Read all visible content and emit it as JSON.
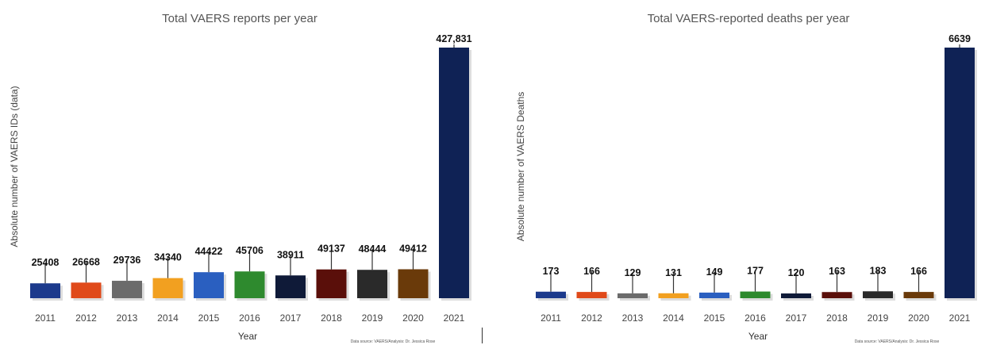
{
  "chart_data": [
    {
      "type": "bar",
      "title": "Total VAERS reports per year",
      "xlabel": "Year",
      "ylabel": "Absolute number of VAERS IDs (data)",
      "categories": [
        "2011",
        "2012",
        "2013",
        "2014",
        "2015",
        "2016",
        "2017",
        "2018",
        "2019",
        "2020",
        "2021"
      ],
      "values": [
        25408,
        26668,
        29736,
        34340,
        44422,
        45706,
        38911,
        49137,
        48444,
        49412,
        427831
      ],
      "value_labels": [
        "25408",
        "26668",
        "29736",
        "34340",
        "44422",
        "45706",
        "38911",
        "49137",
        "48444",
        "49412",
        "427,831"
      ],
      "ylim": [
        0,
        427831
      ],
      "grid": false,
      "source": "Data source: VAERS/Analysis: Dr. Jessica Rose",
      "colors": [
        "#1c3a8c",
        "#e04a1a",
        "#6b6b6b",
        "#f2a020",
        "#2a5fc0",
        "#2e8a2e",
        "#0f1a38",
        "#5a0f0a",
        "#2a2a2a",
        "#6a3a0a",
        "#0f2255"
      ]
    },
    {
      "type": "bar",
      "title": "Total VAERS-reported deaths per year",
      "xlabel": "Year",
      "ylabel": "Absolute number of VAERS Deaths",
      "categories": [
        "2011",
        "2012",
        "2013",
        "2014",
        "2015",
        "2016",
        "2017",
        "2018",
        "2019",
        "2020",
        "2021"
      ],
      "values": [
        173,
        166,
        129,
        131,
        149,
        177,
        120,
        163,
        183,
        166,
        6639
      ],
      "value_labels": [
        "173",
        "166",
        "129",
        "131",
        "149",
        "177",
        "120",
        "163",
        "183",
        "166",
        "6639"
      ],
      "ylim": [
        0,
        6639
      ],
      "grid": false,
      "source": "Data source: VAERS/Analysis: Dr. Jessica Rose",
      "colors": [
        "#1c3a8c",
        "#e04a1a",
        "#6b6b6b",
        "#f2a020",
        "#2a5fc0",
        "#2e8a2e",
        "#0f1a38",
        "#5a0f0a",
        "#2a2a2a",
        "#6a3a0a",
        "#0f2255"
      ]
    }
  ]
}
